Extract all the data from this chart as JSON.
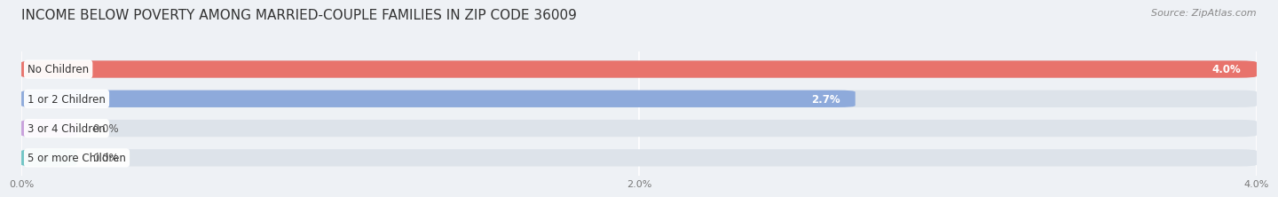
{
  "title": "INCOME BELOW POVERTY AMONG MARRIED-COUPLE FAMILIES IN ZIP CODE 36009",
  "source": "Source: ZipAtlas.com",
  "categories": [
    "No Children",
    "1 or 2 Children",
    "3 or 4 Children",
    "5 or more Children"
  ],
  "values": [
    4.0,
    2.7,
    0.0,
    0.0
  ],
  "bar_colors": [
    "#e8736c",
    "#8eaadb",
    "#c9a0dc",
    "#70c5c5"
  ],
  "bg_color": "#eef1f5",
  "bar_bg_color": "#dde3ea",
  "xlim_max": 4.0,
  "xticks": [
    0.0,
    2.0,
    4.0
  ],
  "xtick_labels": [
    "0.0%",
    "2.0%",
    "4.0%"
  ],
  "title_fontsize": 11,
  "source_fontsize": 8,
  "bar_height": 0.58,
  "label_fontsize": 8.5,
  "value_fontsize": 8.5,
  "zero_bar_width": 0.18
}
